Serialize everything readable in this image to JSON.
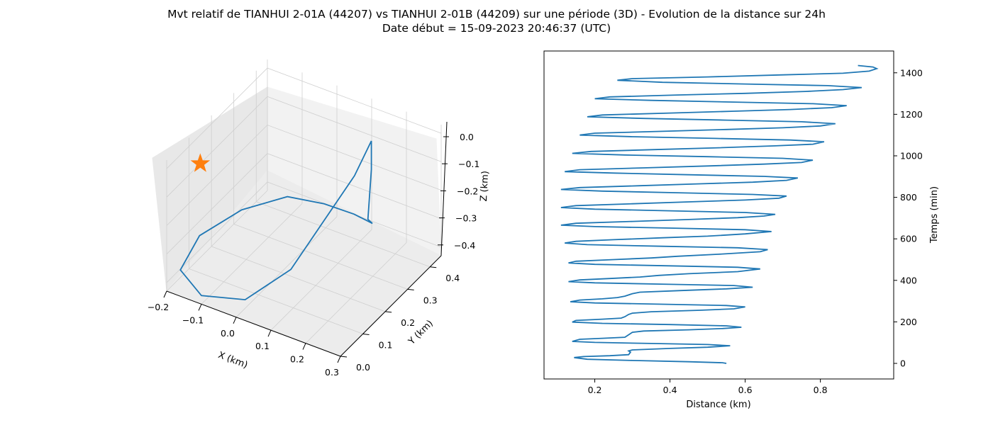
{
  "figure": {
    "title_line1": "Mvt relatif de TIANHUI 2-01A (44207) vs TIANHUI 2-01B (44209) sur une période (3D) - Evolution de la distance sur 24h",
    "title_line2": "Date début = 15-09-2023 20:46:37 (UTC)"
  },
  "colors": {
    "series": "#1f77b4",
    "marker": "#ff7f0e",
    "pane": "#f2f2f2",
    "grid": "#d3d3d3"
  },
  "chart_data": [
    {
      "type": "line3d",
      "xlabel": "X (km)",
      "ylabel": "Y (km)",
      "zlabel": "Z (km)",
      "x_ticks": [
        "−0.2",
        "−0.1",
        "0.0",
        "0.1",
        "0.2",
        "0.3"
      ],
      "y_ticks": [
        "0.0",
        "0.1",
        "0.2",
        "0.3",
        "0.4"
      ],
      "z_ticks": [
        "0.0",
        "−0.1",
        "−0.2",
        "−0.3",
        "−0.4"
      ],
      "xlim": [
        -0.2,
        0.3
      ],
      "ylim": [
        0.0,
        0.45
      ],
      "zlim": [
        -0.43,
        0.03
      ],
      "grid": true,
      "trajectory": [
        {
          "x": 0.17,
          "y": 0.34,
          "z": 0.0
        },
        {
          "x": 0.16,
          "y": 0.28,
          "z": -0.08
        },
        {
          "x": 0.12,
          "y": 0.2,
          "z": -0.2
        },
        {
          "x": 0.08,
          "y": 0.12,
          "z": -0.32
        },
        {
          "x": 0.0,
          "y": 0.04,
          "z": -0.4
        },
        {
          "x": -0.1,
          "y": 0.0,
          "z": -0.4
        },
        {
          "x": -0.18,
          "y": 0.03,
          "z": -0.37
        },
        {
          "x": -0.17,
          "y": 0.1,
          "z": -0.3
        },
        {
          "x": -0.1,
          "y": 0.18,
          "z": -0.24
        },
        {
          "x": -0.02,
          "y": 0.26,
          "z": -0.22
        },
        {
          "x": 0.06,
          "y": 0.3,
          "z": -0.24
        },
        {
          "x": 0.12,
          "y": 0.34,
          "z": -0.28
        },
        {
          "x": 0.16,
          "y": 0.36,
          "z": -0.31
        },
        {
          "x": 0.16,
          "y": 0.34,
          "z": -0.28
        },
        {
          "x": 0.17,
          "y": 0.34,
          "z": -0.1
        },
        {
          "x": 0.17,
          "y": 0.34,
          "z": 0.0
        }
      ],
      "start_marker": {
        "x": -0.2,
        "y": 0.15,
        "z": -0.1,
        "symbol": "star"
      }
    },
    {
      "type": "line",
      "xlabel": "Distance (km)",
      "ylabel": "Temps (min)",
      "x_ticks": [
        0.2,
        0.4,
        0.6,
        0.8
      ],
      "y_ticks": [
        0,
        200,
        400,
        600,
        800,
        1000,
        1200,
        1400
      ],
      "xlim": [
        0.065,
        0.995
      ],
      "ylim": [
        -75,
        1505
      ],
      "yaxis_position": "right",
      "series": [
        {
          "points": [
            [
              0.55,
              0
            ],
            [
              0.54,
              3
            ],
            [
              0.45,
              8
            ],
            [
              0.3,
              14
            ],
            [
              0.18,
              20
            ],
            [
              0.145,
              28
            ],
            [
              0.17,
              33
            ],
            [
              0.24,
              37
            ],
            [
              0.29,
              42
            ],
            [
              0.295,
              54
            ],
            [
              0.29,
              60
            ],
            [
              0.3,
              65
            ],
            [
              0.4,
              72
            ],
            [
              0.5,
              78
            ],
            [
              0.56,
              85
            ],
            [
              0.5,
              91
            ],
            [
              0.35,
              96
            ],
            [
              0.2,
              101
            ],
            [
              0.14,
              106
            ],
            [
              0.16,
              116
            ],
            [
              0.22,
              121
            ],
            [
              0.28,
              126
            ],
            [
              0.29,
              138
            ],
            [
              0.3,
              150
            ],
            [
              0.33,
              156
            ],
            [
              0.45,
              162
            ],
            [
              0.54,
              168
            ],
            [
              0.59,
              174
            ],
            [
              0.55,
              181
            ],
            [
              0.4,
              187
            ],
            [
              0.22,
              193
            ],
            [
              0.14,
              199
            ],
            [
              0.15,
              207
            ],
            [
              0.22,
              213
            ],
            [
              0.27,
              218
            ],
            [
              0.28,
              225
            ],
            [
              0.29,
              236
            ],
            [
              0.3,
              242
            ],
            [
              0.35,
              249
            ],
            [
              0.48,
              256
            ],
            [
              0.57,
              263
            ],
            [
              0.6,
              272
            ],
            [
              0.55,
              279
            ],
            [
              0.38,
              285
            ],
            [
              0.2,
              291
            ],
            [
              0.135,
              297
            ],
            [
              0.16,
              305
            ],
            [
              0.22,
              311
            ],
            [
              0.26,
              317
            ],
            [
              0.28,
              324
            ],
            [
              0.3,
              336
            ],
            [
              0.32,
              343
            ],
            [
              0.43,
              351
            ],
            [
              0.55,
              359
            ],
            [
              0.62,
              367
            ],
            [
              0.57,
              375
            ],
            [
              0.4,
              381
            ],
            [
              0.2,
              388
            ],
            [
              0.13,
              394
            ],
            [
              0.16,
              402
            ],
            [
              0.24,
              409
            ],
            [
              0.32,
              416
            ],
            [
              0.37,
              424
            ],
            [
              0.45,
              432
            ],
            [
              0.58,
              442
            ],
            [
              0.64,
              455
            ],
            [
              0.58,
              463
            ],
            [
              0.4,
              470
            ],
            [
              0.2,
              477
            ],
            [
              0.13,
              484
            ],
            [
              0.15,
              492
            ],
            [
              0.25,
              500
            ],
            [
              0.35,
              508
            ],
            [
              0.42,
              516
            ],
            [
              0.53,
              526
            ],
            [
              0.64,
              538
            ],
            [
              0.66,
              548
            ],
            [
              0.58,
              557
            ],
            [
              0.38,
              564
            ],
            [
              0.18,
              572
            ],
            [
              0.12,
              580
            ],
            [
              0.15,
              588
            ],
            [
              0.25,
              596
            ],
            [
              0.38,
              605
            ],
            [
              0.5,
              613
            ],
            [
              0.6,
              624
            ],
            [
              0.67,
              635
            ],
            [
              0.6,
              644
            ],
            [
              0.4,
              652
            ],
            [
              0.2,
              659
            ],
            [
              0.11,
              666
            ],
            [
              0.15,
              675
            ],
            [
              0.3,
              684
            ],
            [
              0.45,
              693
            ],
            [
              0.58,
              702
            ],
            [
              0.65,
              710
            ],
            [
              0.68,
              718
            ],
            [
              0.6,
              727
            ],
            [
              0.4,
              735
            ],
            [
              0.2,
              743
            ],
            [
              0.11,
              751
            ],
            [
              0.15,
              760
            ],
            [
              0.3,
              769
            ],
            [
              0.45,
              778
            ],
            [
              0.6,
              787
            ],
            [
              0.69,
              796
            ],
            [
              0.71,
              806
            ],
            [
              0.62,
              814
            ],
            [
              0.42,
              822
            ],
            [
              0.22,
              830
            ],
            [
              0.11,
              838
            ],
            [
              0.16,
              847
            ],
            [
              0.32,
              856
            ],
            [
              0.48,
              865
            ],
            [
              0.62,
              873
            ],
            [
              0.71,
              882
            ],
            [
              0.74,
              893
            ],
            [
              0.65,
              901
            ],
            [
              0.45,
              909
            ],
            [
              0.25,
              917
            ],
            [
              0.12,
              924
            ],
            [
              0.16,
              933
            ],
            [
              0.33,
              942
            ],
            [
              0.5,
              951
            ],
            [
              0.65,
              960
            ],
            [
              0.75,
              968
            ],
            [
              0.78,
              979
            ],
            [
              0.7,
              988
            ],
            [
              0.5,
              996
            ],
            [
              0.28,
              1004
            ],
            [
              0.14,
              1012
            ],
            [
              0.19,
              1021
            ],
            [
              0.36,
              1030
            ],
            [
              0.53,
              1039
            ],
            [
              0.68,
              1048
            ],
            [
              0.78,
              1056
            ],
            [
              0.81,
              1068
            ],
            [
              0.72,
              1076
            ],
            [
              0.52,
              1084
            ],
            [
              0.3,
              1092
            ],
            [
              0.16,
              1100
            ],
            [
              0.2,
              1109
            ],
            [
              0.38,
              1118
            ],
            [
              0.55,
              1127
            ],
            [
              0.7,
              1135
            ],
            [
              0.8,
              1144
            ],
            [
              0.84,
              1155
            ],
            [
              0.75,
              1164
            ],
            [
              0.55,
              1172
            ],
            [
              0.33,
              1180
            ],
            [
              0.18,
              1188
            ],
            [
              0.22,
              1197
            ],
            [
              0.4,
              1206
            ],
            [
              0.57,
              1215
            ],
            [
              0.72,
              1223
            ],
            [
              0.83,
              1232
            ],
            [
              0.87,
              1242
            ],
            [
              0.78,
              1251
            ],
            [
              0.57,
              1259
            ],
            [
              0.35,
              1267
            ],
            [
              0.2,
              1275
            ],
            [
              0.24,
              1284
            ],
            [
              0.42,
              1293
            ],
            [
              0.6,
              1301
            ],
            [
              0.76,
              1310
            ],
            [
              0.86,
              1319
            ],
            [
              0.91,
              1329
            ],
            [
              0.82,
              1338
            ],
            [
              0.6,
              1346
            ],
            [
              0.38,
              1354
            ],
            [
              0.26,
              1364
            ],
            [
              0.3,
              1372
            ],
            [
              0.5,
              1380
            ],
            [
              0.7,
              1390
            ],
            [
              0.86,
              1398
            ],
            [
              0.93,
              1408
            ],
            [
              0.95,
              1420
            ],
            [
              0.94,
              1428
            ],
            [
              0.9,
              1435
            ]
          ]
        }
      ]
    }
  ]
}
